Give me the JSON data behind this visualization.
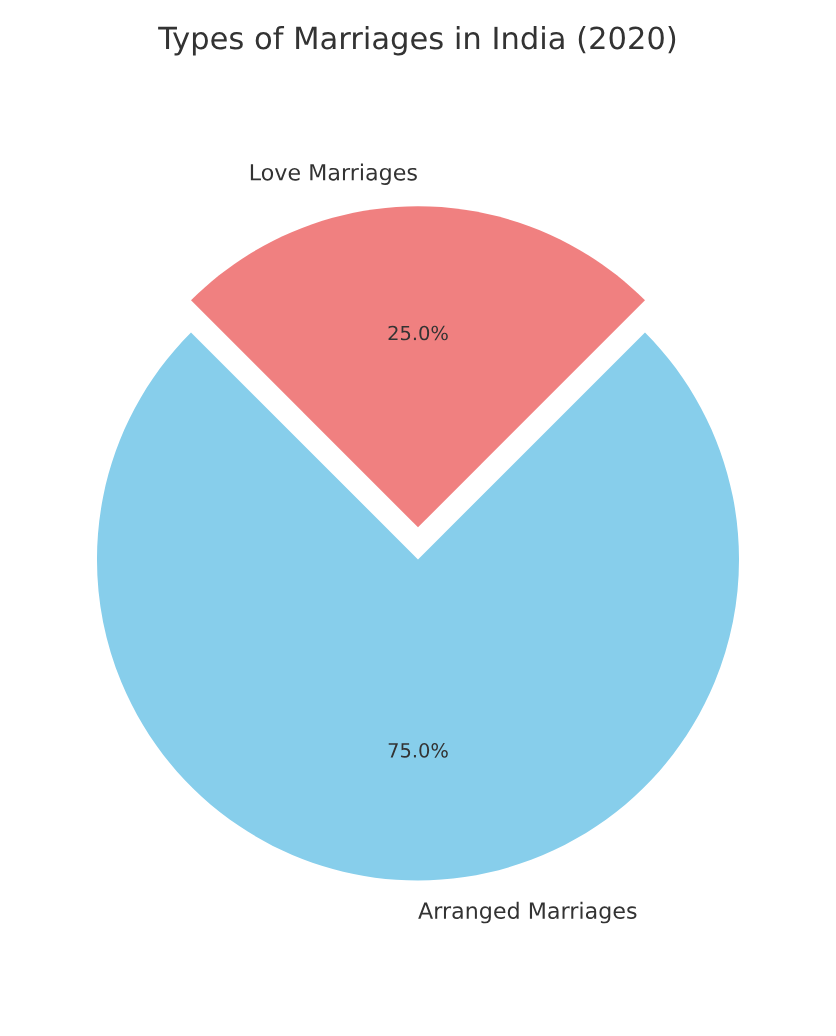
{
  "chart_data": {
    "type": "pie",
    "title": "Types of Marriages in India (2020)",
    "categories": [
      "Arranged Marriages",
      "Love Marriages"
    ],
    "values": [
      75,
      25
    ],
    "colors": [
      "#87ceeb",
      "#f08080"
    ],
    "value_labels": [
      "75.0%",
      "25.0%"
    ]
  }
}
